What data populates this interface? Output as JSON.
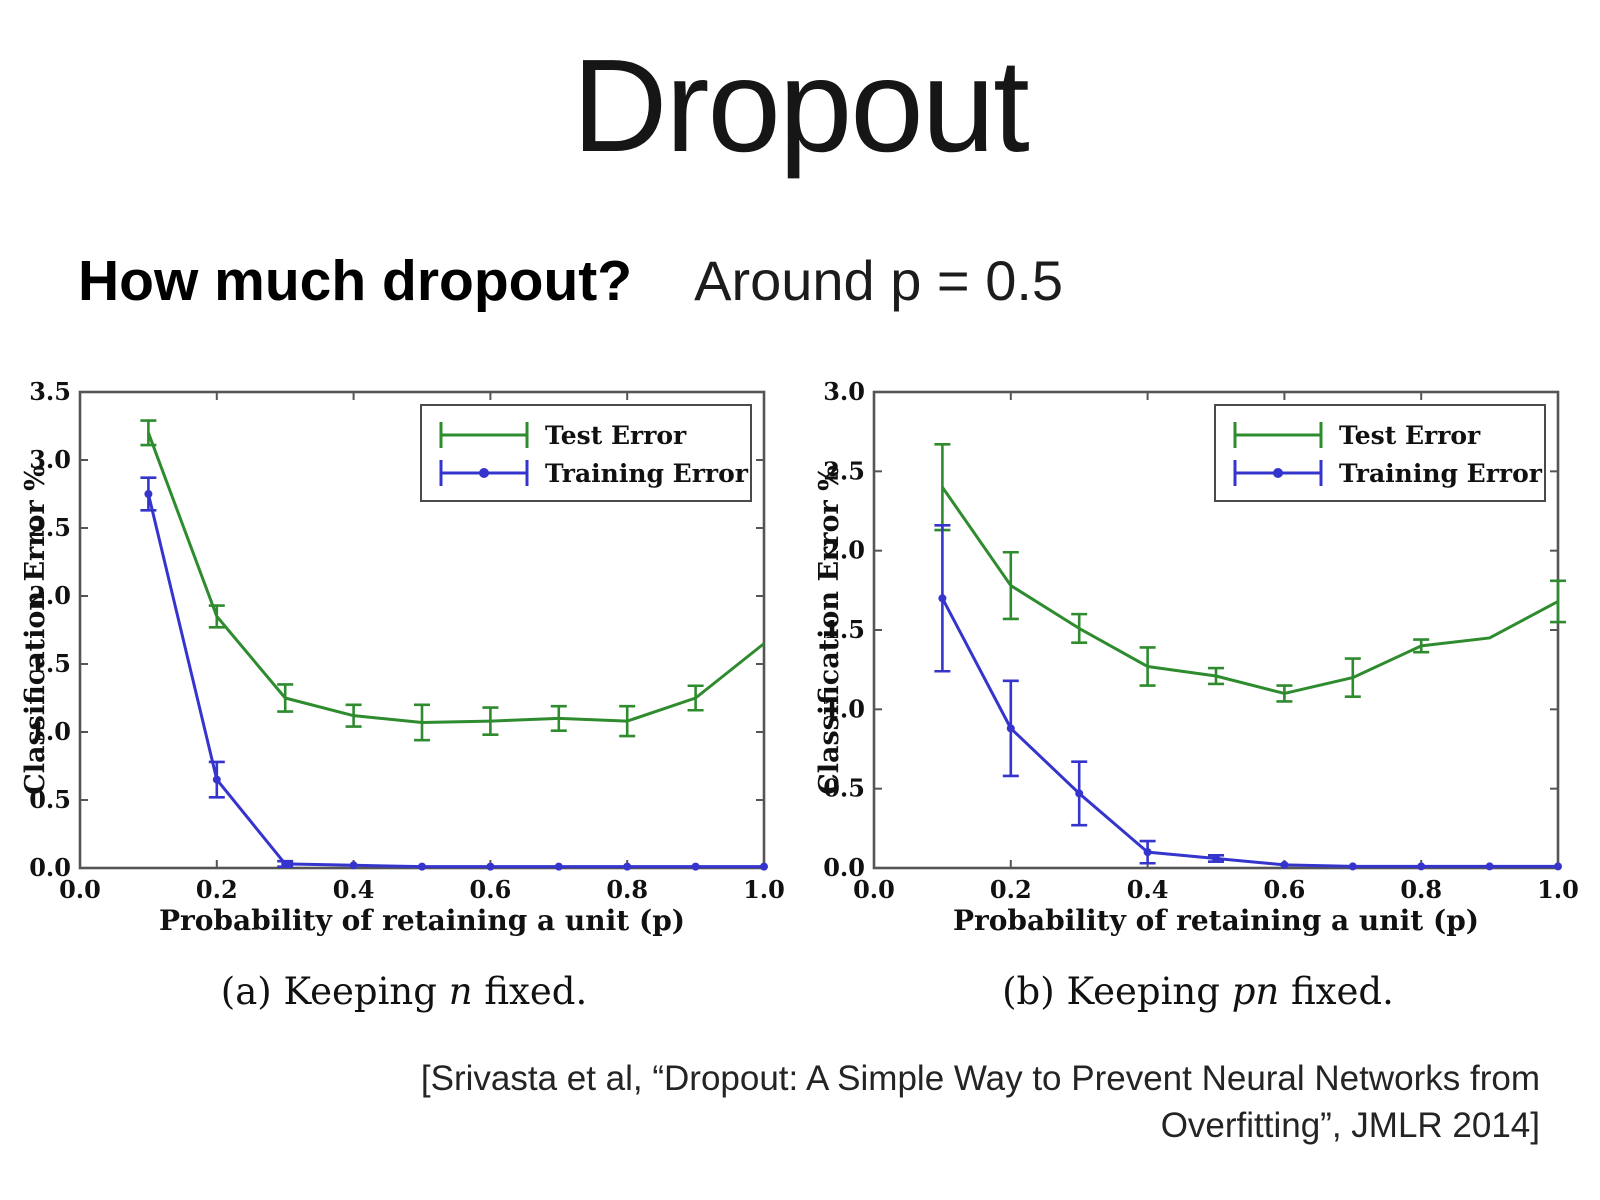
{
  "slide": {
    "title": "Dropout",
    "question": "How much dropout?",
    "answer": "Around p = 0.5",
    "citation_line1": "[Srivasta et al, “Dropout: A Simple Way to Prevent Neural Networks from",
    "citation_line2": "Overfitting”, JMLR 2014]"
  },
  "colors": {
    "test_error": "#2e8b2e",
    "training_error": "#3535cd",
    "axis": "#555555",
    "label_text": "#111111"
  },
  "chart_data": [
    {
      "type": "line",
      "xlabel": "Probability of retaining a unit (p)",
      "ylabel": "Classification Error %",
      "xlim": [
        0.0,
        1.0
      ],
      "ylim": [
        0.0,
        3.5
      ],
      "xticks": [
        "0.0",
        "0.2",
        "0.4",
        "0.6",
        "0.8",
        "1.0"
      ],
      "yticks": [
        "0.0",
        "0.5",
        "1.0",
        "1.5",
        "2.0",
        "2.5",
        "3.0",
        "3.5"
      ],
      "grid": false,
      "legend_position": "top-right",
      "x": [
        0.1,
        0.2,
        0.3,
        0.4,
        0.5,
        0.6,
        0.7,
        0.8,
        0.9,
        1.0
      ],
      "series": [
        {
          "name": "Test Error",
          "color_key": "test_error",
          "marker": "none",
          "values": [
            3.2,
            1.85,
            1.25,
            1.12,
            1.07,
            1.08,
            1.1,
            1.08,
            1.25,
            1.65
          ],
          "errors": [
            0.09,
            0.08,
            0.1,
            0.08,
            0.13,
            0.1,
            0.09,
            0.11,
            0.09,
            0
          ]
        },
        {
          "name": "Training Error",
          "color_key": "training_error",
          "marker": "dot",
          "values": [
            2.75,
            0.65,
            0.03,
            0.02,
            0.01,
            0.01,
            0.01,
            0.01,
            0.01,
            0.01
          ],
          "errors": [
            0.12,
            0.13,
            0.02,
            0,
            0,
            0,
            0,
            0,
            0,
            0
          ]
        }
      ],
      "caption": {
        "prefix": "(a) Keeping ",
        "var": "n",
        "suffix": " fixed."
      }
    },
    {
      "type": "line",
      "xlabel": "Probability of retaining a unit (p)",
      "ylabel": "Classification Error %",
      "xlim": [
        0.0,
        1.0
      ],
      "ylim": [
        0.0,
        3.0
      ],
      "xticks": [
        "0.0",
        "0.2",
        "0.4",
        "0.6",
        "0.8",
        "1.0"
      ],
      "yticks": [
        "0.0",
        "0.5",
        "1.0",
        "1.5",
        "2.0",
        "2.5",
        "3.0"
      ],
      "grid": false,
      "legend_position": "top-right",
      "x": [
        0.1,
        0.2,
        0.3,
        0.4,
        0.5,
        0.6,
        0.7,
        0.8,
        0.9,
        1.0
      ],
      "series": [
        {
          "name": "Test Error",
          "color_key": "test_error",
          "marker": "none",
          "values": [
            2.4,
            1.78,
            1.51,
            1.27,
            1.21,
            1.1,
            1.2,
            1.4,
            1.45,
            1.68
          ],
          "errors": [
            0.27,
            0.21,
            0.09,
            0.12,
            0.05,
            0.05,
            0.12,
            0.04,
            0,
            0.13
          ]
        },
        {
          "name": "Training Error",
          "color_key": "training_error",
          "marker": "dot",
          "values": [
            1.7,
            0.88,
            0.47,
            0.1,
            0.06,
            0.02,
            0.01,
            0.01,
            0.01,
            0.01
          ],
          "errors": [
            0.46,
            0.3,
            0.2,
            0.07,
            0.02,
            0,
            0,
            0,
            0,
            0
          ]
        }
      ],
      "caption": {
        "prefix": "(b) Keeping ",
        "var": "pn",
        "suffix": " fixed."
      }
    }
  ]
}
